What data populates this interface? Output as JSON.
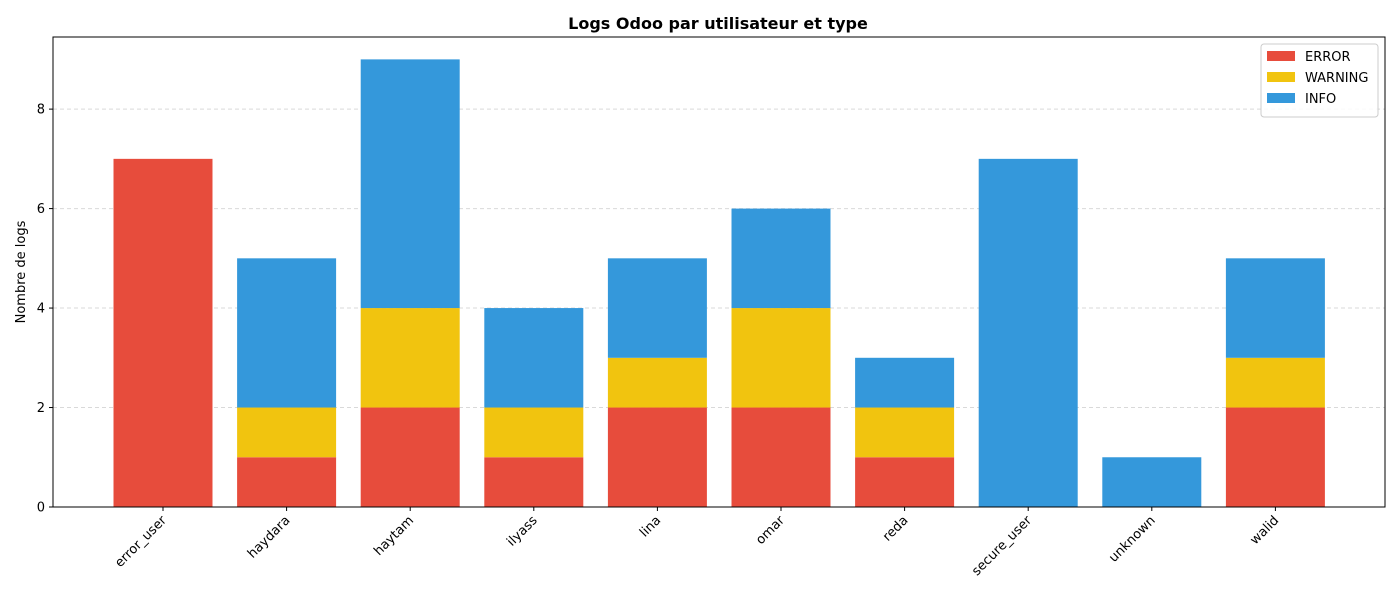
{
  "chart_data": {
    "type": "bar",
    "stacked": true,
    "title": "Logs Odoo par utilisateur et type",
    "xlabel": "",
    "ylabel": "Nombre de logs",
    "ylim": [
      0,
      9.45
    ],
    "yticks": [
      0,
      2,
      4,
      6,
      8
    ],
    "grid": "y-dashed",
    "legend_position": "top-right",
    "categories": [
      "error_user",
      "haydara",
      "haytam",
      "ilyass",
      "lina",
      "omar",
      "reda",
      "secure_user",
      "unknown",
      "walid"
    ],
    "series": [
      {
        "name": "ERROR",
        "color": "#e74c3c",
        "values": [
          7,
          1,
          2,
          1,
          2,
          2,
          1,
          0,
          0,
          2
        ]
      },
      {
        "name": "WARNING",
        "color": "#f1c40f",
        "values": [
          0,
          1,
          2,
          1,
          1,
          2,
          1,
          0,
          0,
          1
        ]
      },
      {
        "name": "INFO",
        "color": "#3498db",
        "values": [
          0,
          3,
          5,
          2,
          2,
          2,
          1,
          7,
          1,
          2
        ]
      }
    ]
  }
}
